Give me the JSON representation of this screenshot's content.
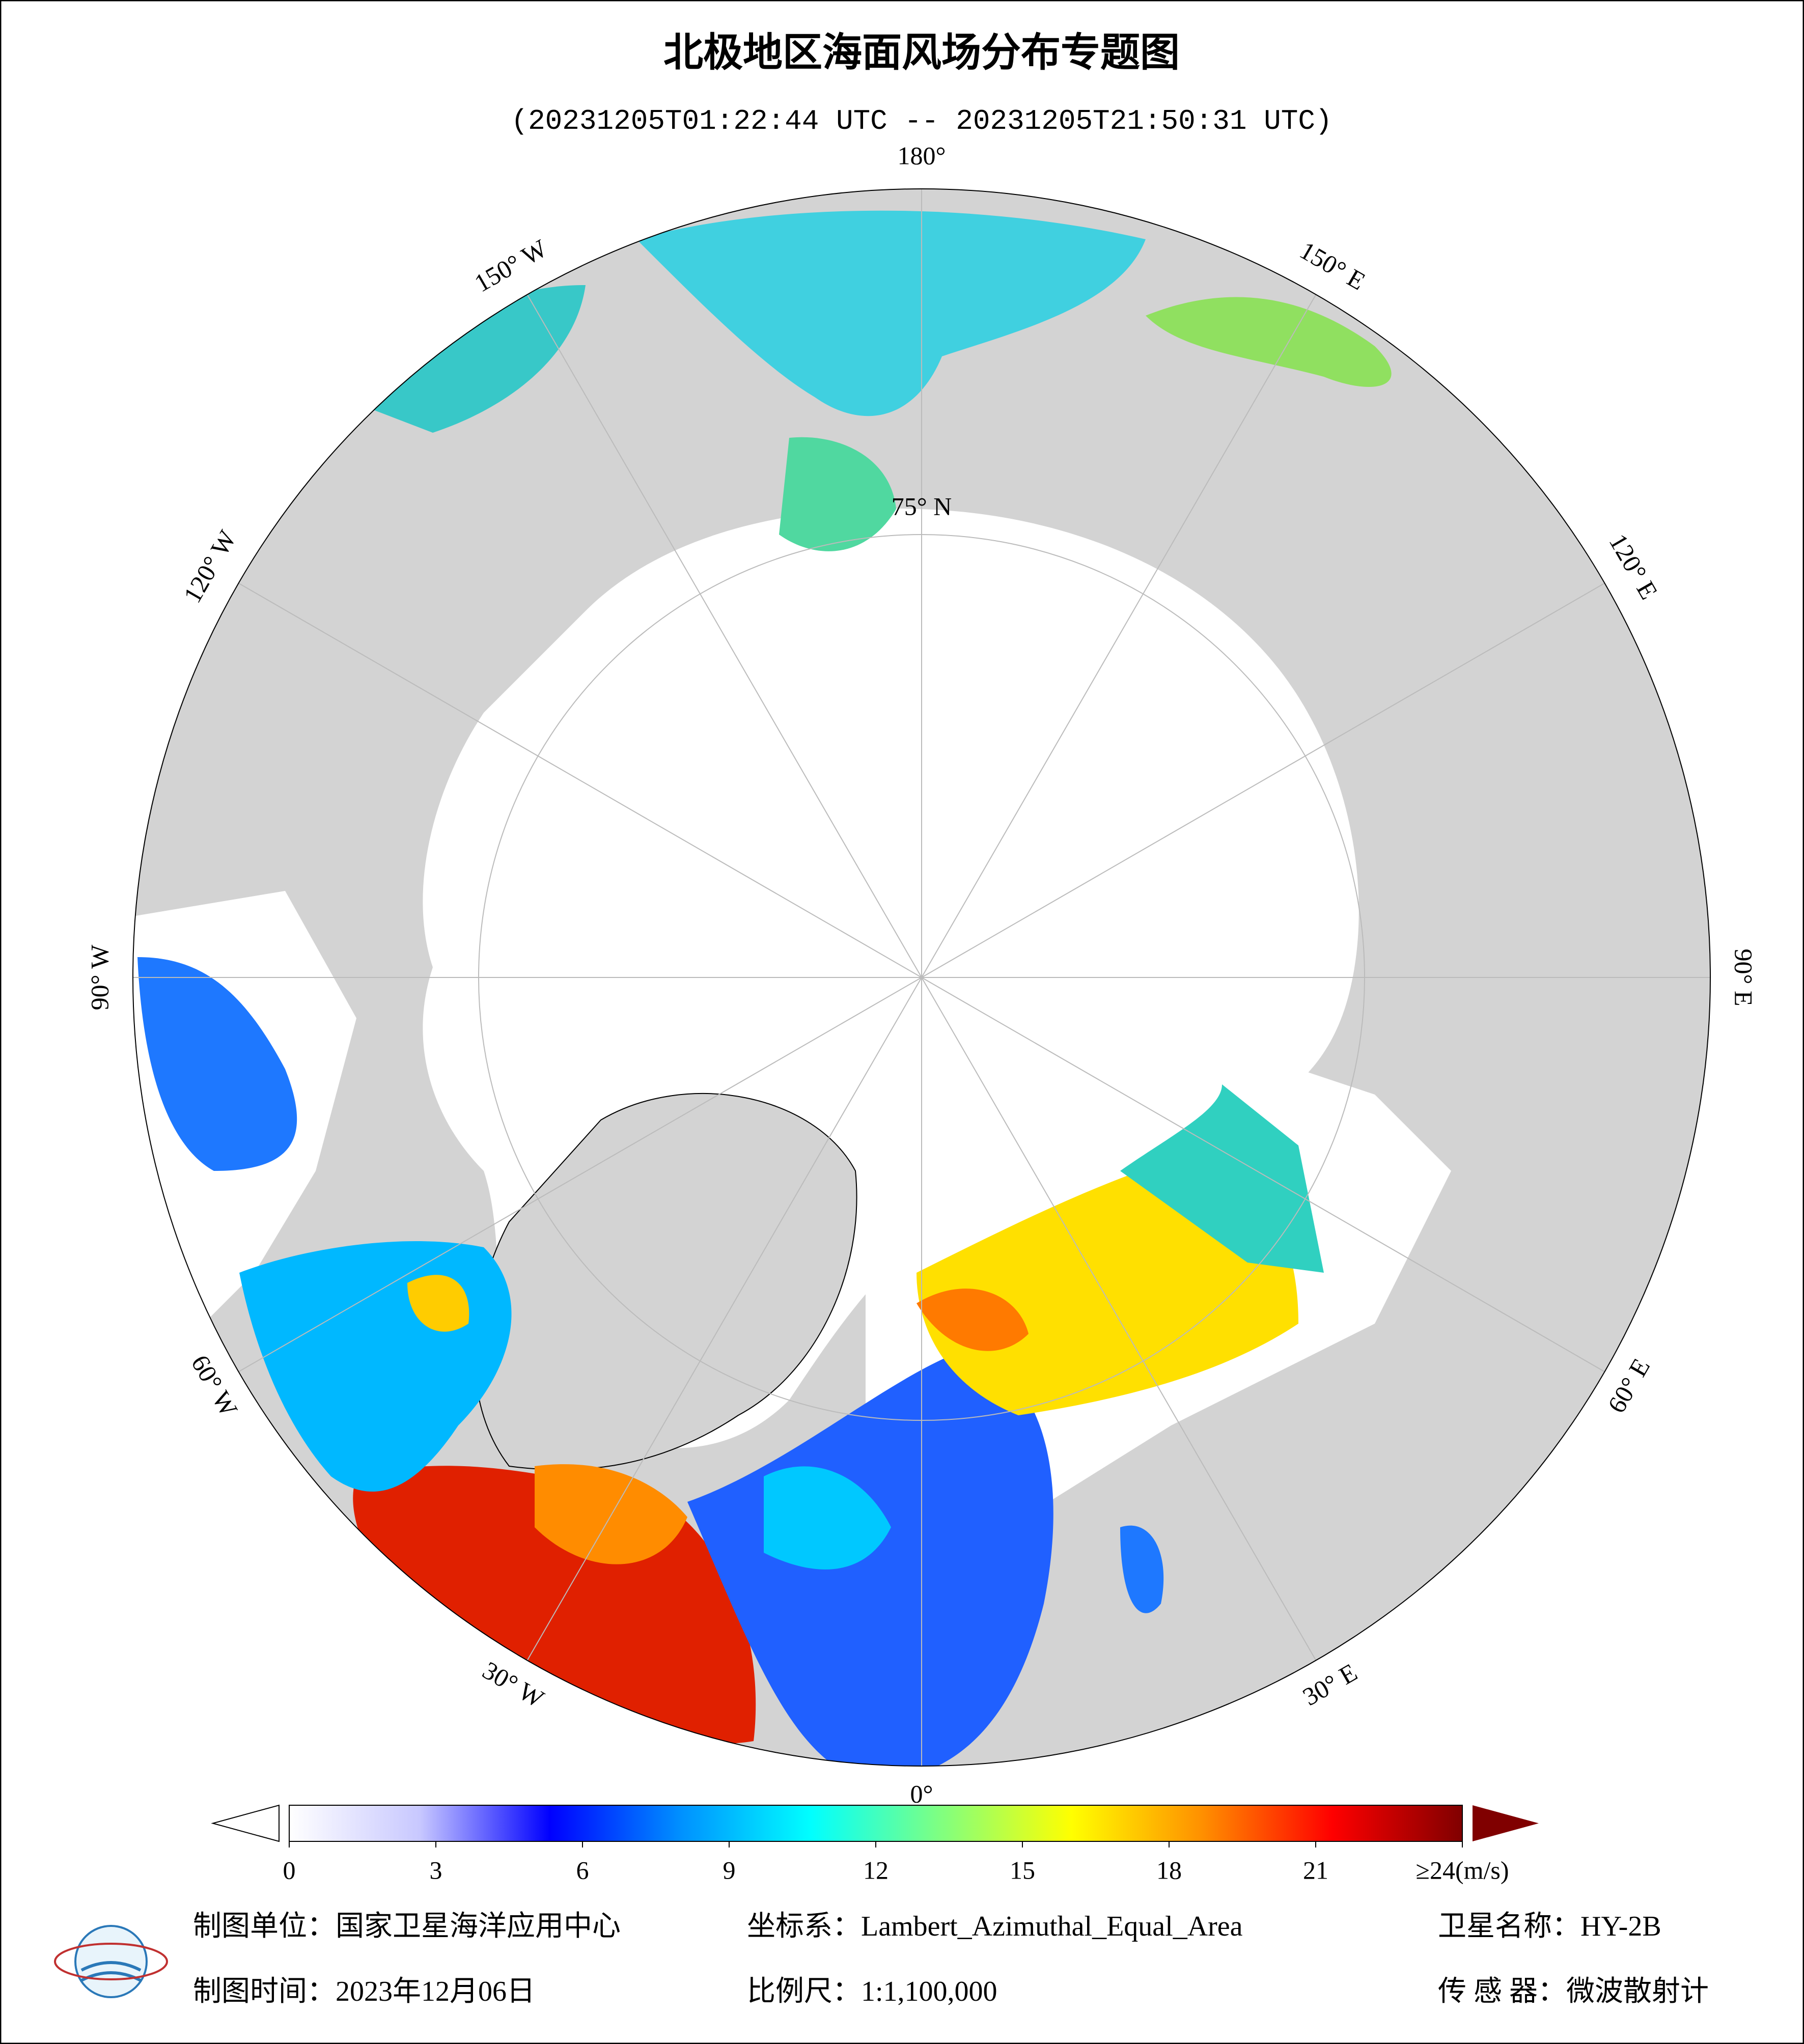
{
  "title": "北极地区海面风场分布专题图",
  "subtitle": "(20231205T01:22:44 UTC -- 20231205T21:50:31 UTC)",
  "longitude_labels": [
    "180°",
    "150° E",
    "120° E",
    "90° E",
    "60° E",
    "30° E",
    "0°",
    "30° W",
    "60° W",
    "90° W",
    "120° W",
    "150° W"
  ],
  "latitude_label": "75° N",
  "colorbar": {
    "range": [
      0,
      24
    ],
    "ticks": [
      0,
      3,
      6,
      9,
      12,
      15,
      18,
      21,
      {
        "value": 24,
        "label": "≥24(m/s)"
      }
    ],
    "colors": [
      "#ffffff",
      "#c8c8ff",
      "#0000ff",
      "#0090ff",
      "#00ffff",
      "#80ff80",
      "#ffff00",
      "#ff9000",
      "#ff0000",
      "#800000"
    ]
  },
  "footer": {
    "unit": "制图单位：国家卫星海洋应用中心",
    "crs": "坐标系：Lambert_Azimuthal_Equal_Area",
    "satellite": "卫星名称：HY-2B",
    "date": "制图时间：2023年12月06日",
    "scale": "比例尺：1:1,100,000",
    "sensor": "传 感 器：微波散射计"
  }
}
